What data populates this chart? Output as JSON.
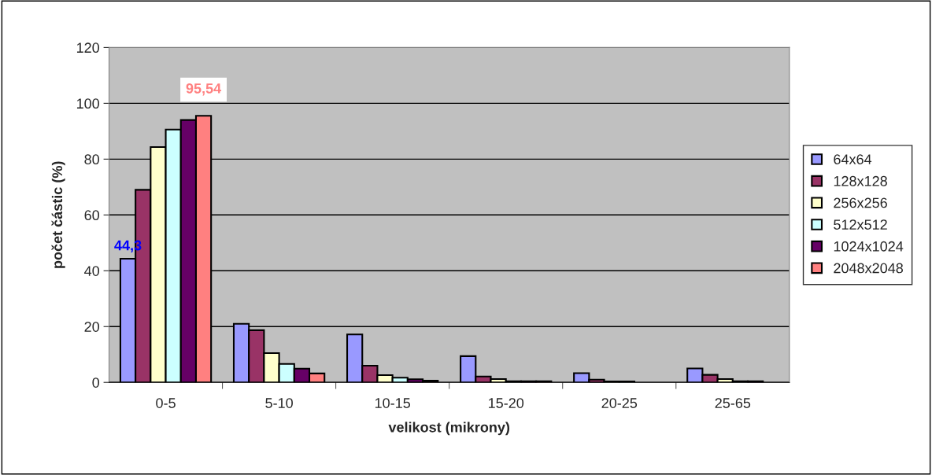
{
  "chart_data": {
    "type": "bar",
    "xlabel": "velikost (mikrony)",
    "ylabel": "počet částic (%)",
    "categories": [
      "0-5",
      "5-10",
      "10-15",
      "15-20",
      "20-25",
      "25-65"
    ],
    "series": [
      {
        "name": "64x64",
        "color": "#9999ff",
        "values": [
          44.3,
          21,
          17.2,
          9.4,
          3.3,
          5.0
        ],
        "value_labels": [
          "44,3",
          null,
          null,
          null,
          null,
          null
        ]
      },
      {
        "name": "128x128",
        "color": "#993366",
        "values": [
          69,
          18.7,
          6.0,
          2.1,
          1.0,
          2.7
        ]
      },
      {
        "name": "256x256",
        "color": "#ffffcc",
        "values": [
          84.3,
          10.5,
          2.6,
          1.2,
          0.3,
          1.2
        ]
      },
      {
        "name": "512x512",
        "color": "#ccffff",
        "values": [
          90.6,
          6.6,
          1.7,
          0.4,
          0.3,
          0.4
        ]
      },
      {
        "name": "1024x1024",
        "color": "#660066",
        "values": [
          94,
          4.9,
          1.1,
          0.4,
          null,
          0.4
        ]
      },
      {
        "name": "2048x2048",
        "color": "#ff8080",
        "values": [
          95.54,
          3.2,
          0.6,
          0.4,
          null,
          null
        ],
        "value_labels": [
          "95,54",
          null,
          null,
          null,
          null,
          null
        ]
      }
    ],
    "ylim": [
      0,
      120
    ],
    "yticks": [
      0,
      20,
      40,
      60,
      80,
      100,
      120
    ],
    "grid": "y",
    "legend": "right"
  }
}
